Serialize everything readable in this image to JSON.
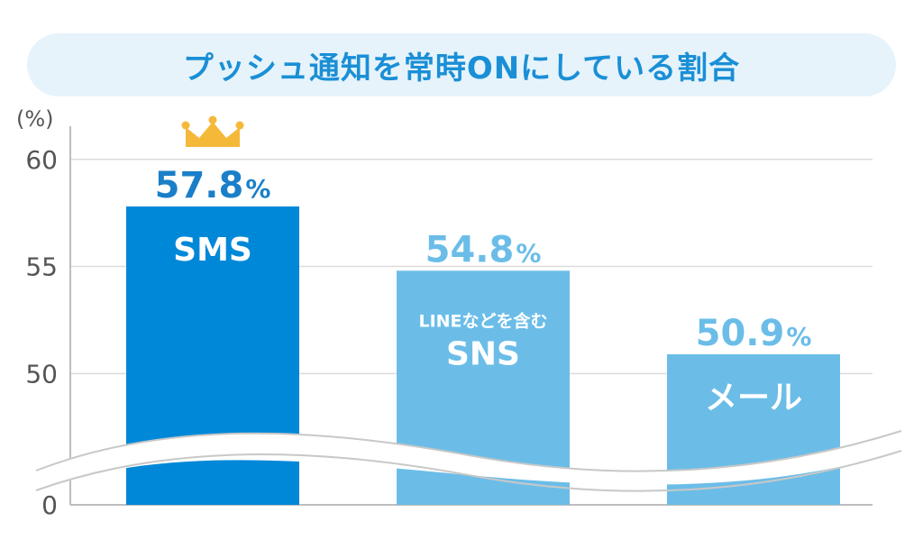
{
  "title": "プッシュ通知を常時ONにしている割合",
  "colors": {
    "title_bg": "#e6f3fb",
    "title_text": "#1a8fd6",
    "highlight_bar": "#0088d8",
    "bar": "#6bbde8",
    "highlight_label": "#1a7fc8",
    "label": "#6bbde8",
    "crown": "#f5b93a"
  },
  "chart_data": {
    "type": "bar",
    "unit_label": "(%)",
    "ytick_labels": [
      "0",
      "50",
      "55",
      "60"
    ],
    "y_axis_break": true,
    "ylim_upper": [
      48.5,
      61
    ],
    "grid": true,
    "highlight_icon": "crown-icon",
    "categories": [
      {
        "label_top": "",
        "label_main": "SMS",
        "value": 57.8,
        "value_text": "57.8",
        "suffix": "%",
        "highlight": true
      },
      {
        "label_top": "LINEなどを含む",
        "label_main": "SNS",
        "value": 54.8,
        "value_text": "54.8",
        "suffix": "%",
        "highlight": false
      },
      {
        "label_top": "",
        "label_main": "メール",
        "value": 50.9,
        "value_text": "50.9",
        "suffix": "%",
        "highlight": false
      }
    ]
  }
}
